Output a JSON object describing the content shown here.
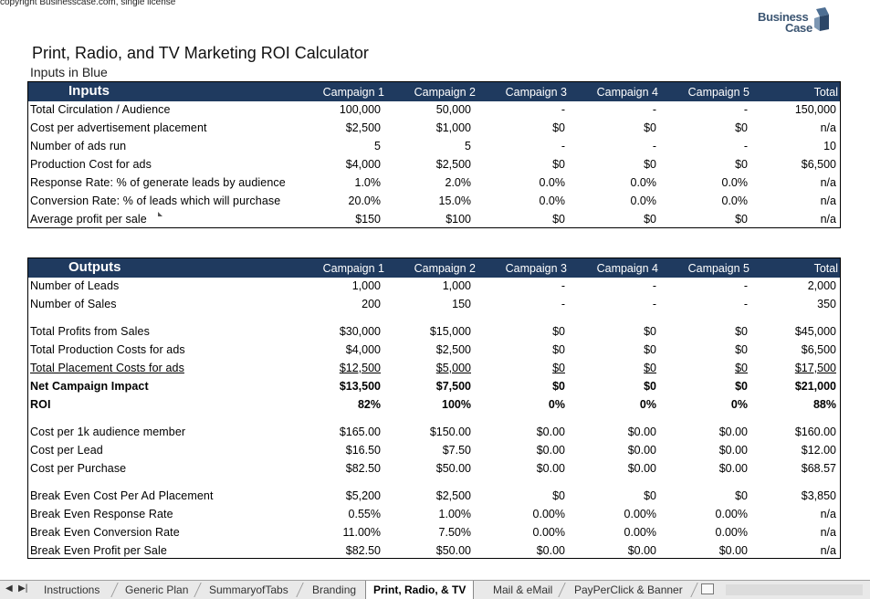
{
  "copyright": "copyright Businesscase.com, single license",
  "logo": {
    "word1": "Business",
    "word2": "Case"
  },
  "title": "Print, Radio, and TV Marketing ROI Calculator",
  "subtitle": "Inputs in Blue",
  "columns": [
    "Campaign 1",
    "Campaign 2",
    "Campaign 3",
    "Campaign 4",
    "Campaign 5",
    "Total"
  ],
  "inputs": {
    "heading": "Inputs",
    "rows": [
      {
        "label": "Total Circulation / Audience",
        "values": [
          "100,000",
          "50,000",
          "-",
          "-",
          "-",
          "150,000"
        ]
      },
      {
        "label": "Cost per advertisement placement",
        "values": [
          "$2,500",
          "$1,000",
          "$0",
          "$0",
          "$0",
          "n/a"
        ]
      },
      {
        "label": "Number of ads run",
        "values": [
          "5",
          "5",
          "-",
          "-",
          "-",
          "10"
        ]
      },
      {
        "label": "Production Cost for ads",
        "values": [
          "$4,000",
          "$2,500",
          "$0",
          "$0",
          "$0",
          "$6,500"
        ]
      },
      {
        "label": "Response Rate: % of generate leads by audience",
        "values": [
          "1.0%",
          "2.0%",
          "0.0%",
          "0.0%",
          "0.0%",
          "n/a"
        ]
      },
      {
        "label": "Conversion Rate: % of leads which will purchase",
        "values": [
          "20.0%",
          "15.0%",
          "0.0%",
          "0.0%",
          "0.0%",
          "n/a"
        ]
      },
      {
        "label": "Average profit per sale",
        "values": [
          "$150",
          "$100",
          "$0",
          "$0",
          "$0",
          "n/a"
        ]
      }
    ]
  },
  "outputs": {
    "heading": "Outputs",
    "rows": [
      {
        "label": "Number of Leads",
        "values": [
          "1,000",
          "1,000",
          "-",
          "-",
          "-",
          "2,000"
        ]
      },
      {
        "label": "Number of Sales",
        "values": [
          "200",
          "150",
          "-",
          "-",
          "-",
          "350"
        ]
      },
      {
        "label": "Total Profits from Sales",
        "values": [
          "$30,000",
          "$15,000",
          "$0",
          "$0",
          "$0",
          "$45,000"
        ]
      },
      {
        "label": "Total Production Costs for ads",
        "values": [
          "$4,000",
          "$2,500",
          "$0",
          "$0",
          "$0",
          "$6,500"
        ]
      },
      {
        "label": "Total Placement Costs for ads",
        "values": [
          "$12,500",
          "$5,000",
          "$0",
          "$0",
          "$0",
          "$17,500"
        ]
      },
      {
        "label": "Net Campaign Impact",
        "values": [
          "$13,500",
          "$7,500",
          "$0",
          "$0",
          "$0",
          "$21,000"
        ]
      },
      {
        "label": "ROI",
        "values": [
          "82%",
          "100%",
          "0%",
          "0%",
          "0%",
          "88%"
        ]
      },
      {
        "label": "Cost per 1k audience member",
        "values": [
          "$165.00",
          "$150.00",
          "$0.00",
          "$0.00",
          "$0.00",
          "$160.00"
        ]
      },
      {
        "label": "Cost per Lead",
        "values": [
          "$16.50",
          "$7.50",
          "$0.00",
          "$0.00",
          "$0.00",
          "$12.00"
        ]
      },
      {
        "label": "Cost per Purchase",
        "values": [
          "$82.50",
          "$50.00",
          "$0.00",
          "$0.00",
          "$0.00",
          "$68.57"
        ]
      },
      {
        "label": "Break Even Cost Per Ad Placement",
        "values": [
          "$5,200",
          "$2,500",
          "$0",
          "$0",
          "$0",
          "$3,850"
        ]
      },
      {
        "label": "Break Even Response Rate",
        "values": [
          "0.55%",
          "1.00%",
          "0.00%",
          "0.00%",
          "0.00%",
          "n/a"
        ]
      },
      {
        "label": "Break Even Conversion Rate",
        "values": [
          "11.00%",
          "7.50%",
          "0.00%",
          "0.00%",
          "0.00%",
          "n/a"
        ]
      },
      {
        "label": "Break Even Profit per Sale",
        "values": [
          "$82.50",
          "$50.00",
          "$0.00",
          "$0.00",
          "$0.00",
          "n/a"
        ]
      }
    ]
  },
  "tabs": {
    "nav_prev": "◀",
    "nav_last": "▶|",
    "items": [
      "Instructions",
      "Generic Plan",
      "SummaryofTabs",
      "Branding",
      "Print, Radio, & TV",
      "Mail & eMail",
      "PayPerClick & Banner"
    ],
    "active": "Print, Radio, & TV"
  }
}
